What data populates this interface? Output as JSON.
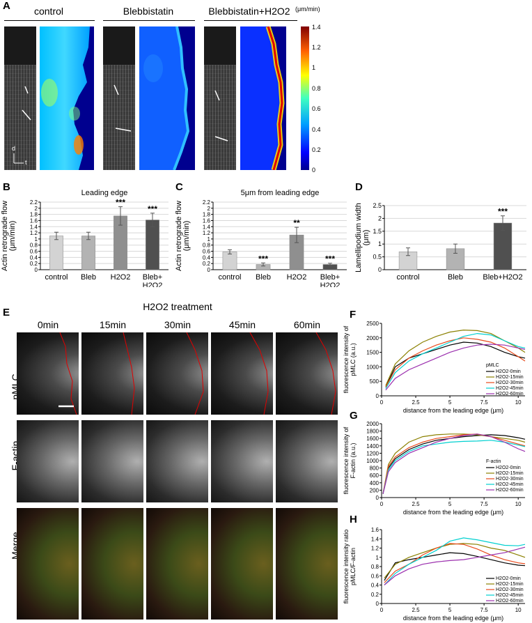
{
  "panelA": {
    "label": "A",
    "conditions": [
      "control",
      "Blebbistatin",
      "Blebbistatin+H2O2"
    ],
    "colorbar": {
      "unit": "(μm/min)",
      "ticks": [
        "1.4",
        "1.2",
        "1",
        "0.8",
        "0.6",
        "0.4",
        "0.2",
        "0"
      ]
    },
    "axis_labels": {
      "d": "d",
      "t": "t"
    }
  },
  "panelB": {
    "label": "B"
  },
  "panelC": {
    "label": "C"
  },
  "panelD": {
    "label": "D"
  },
  "panelE": {
    "label": "E",
    "title": "H2O2 treatment",
    "times": [
      "0min",
      "15min",
      "30min",
      "45min",
      "60min"
    ],
    "rows": [
      "pMLC",
      "F-actin",
      "Merge"
    ]
  },
  "panelF": {
    "label": "F"
  },
  "panelG": {
    "label": "G"
  },
  "panelH": {
    "label": "H"
  },
  "chart_data": [
    {
      "id": "B",
      "type": "bar",
      "title": "Leading edge",
      "ylabel": "Actin retrograde flow (μm/min)",
      "categories": [
        "control",
        "Bleb",
        "H2O2",
        "Bleb+\nH2O2"
      ],
      "values": [
        1.1,
        1.1,
        1.75,
        1.62
      ],
      "errors": [
        0.12,
        0.12,
        0.3,
        0.22
      ],
      "significance": [
        "",
        "",
        "***",
        "***"
      ],
      "colors": [
        "#d3d3d3",
        "#b3b3b3",
        "#8f8f8f",
        "#505050"
      ],
      "ylim": [
        0,
        2.2
      ],
      "yticks": [
        "0",
        "0.2",
        "0.4",
        "0.6",
        "0.8",
        "1",
        "1.2",
        "1.4",
        "1.6",
        "1.8",
        "2",
        "2.2"
      ]
    },
    {
      "id": "C",
      "type": "bar",
      "title": "5μm from leading edge",
      "ylabel": "Actin retrograde flow (μm/min)",
      "categories": [
        "control",
        "Bleb",
        "H2O2",
        "Bleb+\nH2O2"
      ],
      "values": [
        0.58,
        0.17,
        1.13,
        0.17
      ],
      "errors": [
        0.07,
        0.05,
        0.25,
        0.04
      ],
      "significance": [
        "",
        "***",
        "**",
        "***"
      ],
      "colors": [
        "#d3d3d3",
        "#b3b3b3",
        "#8f8f8f",
        "#505050"
      ],
      "ylim": [
        0,
        2.2
      ],
      "yticks": [
        "0",
        "0.2",
        "0.4",
        "0.6",
        "0.8",
        "1",
        "1.2",
        "1.4",
        "1.6",
        "1.8",
        "2",
        "2.2"
      ]
    },
    {
      "id": "D",
      "type": "bar",
      "title": "",
      "ylabel": "Lamellipodium width (μm)",
      "categories": [
        "control",
        "Bleb",
        "Bleb+H2O2"
      ],
      "values": [
        0.7,
        0.82,
        1.82
      ],
      "errors": [
        0.15,
        0.18,
        0.28
      ],
      "significance": [
        "",
        "",
        "***"
      ],
      "colors": [
        "#d3d3d3",
        "#b3b3b3",
        "#505050"
      ],
      "ylim": [
        0,
        2.5
      ],
      "yticks": [
        "0",
        "0.5",
        "1",
        "1.5",
        "2",
        "2.5"
      ]
    },
    {
      "id": "F",
      "type": "line",
      "ylabel": "fluorescence intensity of pMLC (a.u.)",
      "xlabel": "distance from the leading edge (μm)",
      "legend_title": "pMLC",
      "xlim": [
        0,
        10.5
      ],
      "ylim": [
        0,
        2500
      ],
      "xticks": [
        "0",
        "2.5",
        "5",
        "7.5",
        "10"
      ],
      "yticks": [
        "0",
        "500",
        "1000",
        "1500",
        "2000",
        "2500"
      ],
      "x": [
        0.3,
        1,
        2,
        3,
        4,
        5,
        6,
        7,
        8,
        9,
        10,
        10.5
      ],
      "series": [
        {
          "name": "H2O2-0min",
          "color": "#000000",
          "values": [
            300,
            1000,
            1300,
            1450,
            1600,
            1750,
            1850,
            1820,
            1700,
            1500,
            1350,
            1300
          ]
        },
        {
          "name": "H2O2-15min",
          "color": "#8b8000",
          "values": [
            350,
            1100,
            1550,
            1850,
            2050,
            2200,
            2270,
            2250,
            2150,
            1900,
            1650,
            1500
          ]
        },
        {
          "name": "H2O2-30min",
          "color": "#e84a1c",
          "values": [
            300,
            900,
            1300,
            1550,
            1750,
            1900,
            2000,
            1950,
            1850,
            1650,
            1350,
            1200
          ]
        },
        {
          "name": "H2O2-45min",
          "color": "#00d0d0",
          "values": [
            250,
            800,
            1200,
            1450,
            1650,
            1850,
            2050,
            2150,
            2100,
            1900,
            1700,
            1650
          ]
        },
        {
          "name": "H2O2-60min",
          "color": "#9b2fae",
          "values": [
            200,
            600,
            900,
            1100,
            1300,
            1500,
            1650,
            1750,
            1780,
            1750,
            1650,
            1600
          ]
        }
      ]
    },
    {
      "id": "G",
      "type": "line",
      "ylabel": "fluorescence intensity of F-actin (a.u.)",
      "xlabel": "distance from the leading edge (μm)",
      "legend_title": "F-actin",
      "xlim": [
        0,
        10.5
      ],
      "ylim": [
        0,
        2000
      ],
      "xticks": [
        "0",
        "2.5",
        "5",
        "7.5",
        "10"
      ],
      "yticks": [
        "0",
        "200",
        "400",
        "600",
        "800",
        "1000",
        "1200",
        "1400",
        "1600",
        "1800",
        "2000"
      ],
      "x": [
        0.1,
        0.5,
        1,
        2,
        3,
        4,
        5,
        6,
        7,
        8,
        9,
        10,
        10.5
      ],
      "series": [
        {
          "name": "H2O2-0min",
          "color": "#000000",
          "values": [
            100,
            800,
            1050,
            1300,
            1450,
            1550,
            1600,
            1650,
            1680,
            1700,
            1680,
            1620,
            1580
          ]
        },
        {
          "name": "H2O2-15min",
          "color": "#8b8000",
          "values": [
            100,
            900,
            1200,
            1500,
            1650,
            1700,
            1720,
            1720,
            1700,
            1650,
            1600,
            1550,
            1500
          ]
        },
        {
          "name": "H2O2-30min",
          "color": "#e84a1c",
          "values": [
            100,
            850,
            1100,
            1350,
            1500,
            1600,
            1650,
            1700,
            1720,
            1650,
            1550,
            1450,
            1400
          ]
        },
        {
          "name": "H2O2-45min",
          "color": "#00d0d0",
          "values": [
            100,
            750,
            1000,
            1250,
            1400,
            1450,
            1500,
            1520,
            1530,
            1550,
            1500,
            1420,
            1380
          ]
        },
        {
          "name": "H2O2-60min",
          "color": "#9b2fae",
          "values": [
            100,
            700,
            950,
            1200,
            1350,
            1500,
            1600,
            1680,
            1720,
            1650,
            1500,
            1320,
            1250
          ]
        }
      ]
    },
    {
      "id": "H",
      "type": "line",
      "ylabel": "fluorescence intensity ratio pMLC/F-actin",
      "xlabel": "distance from the leading edge (μm)",
      "xlim": [
        0,
        10.5
      ],
      "ylim": [
        0,
        1.6
      ],
      "xticks": [
        "0",
        "2.5",
        "5",
        "7.5",
        "10"
      ],
      "yticks": [
        "0",
        "0.2",
        "0.4",
        "0.6",
        "0.8",
        "1",
        "1.2",
        "1.4",
        "1.6"
      ],
      "x": [
        0.2,
        1,
        2,
        3,
        4,
        5,
        6,
        7,
        8,
        9,
        10,
        10.5
      ],
      "series": [
        {
          "name": "H2O2-0min",
          "color": "#000000",
          "values": [
            0.5,
            0.88,
            0.95,
            1.0,
            1.05,
            1.1,
            1.08,
            1.02,
            0.95,
            0.88,
            0.83,
            0.82
          ]
        },
        {
          "name": "H2O2-15min",
          "color": "#8b8000",
          "values": [
            0.55,
            0.85,
            1.0,
            1.1,
            1.2,
            1.28,
            1.3,
            1.28,
            1.2,
            1.15,
            1.05,
            1.0
          ]
        },
        {
          "name": "H2O2-30min",
          "color": "#e84a1c",
          "values": [
            0.45,
            0.7,
            0.85,
            1.05,
            1.2,
            1.3,
            1.28,
            1.18,
            1.05,
            0.95,
            0.88,
            0.86
          ]
        },
        {
          "name": "H2O2-45min",
          "color": "#00d0d0",
          "values": [
            0.4,
            0.65,
            0.85,
            1.0,
            1.15,
            1.35,
            1.42,
            1.38,
            1.32,
            1.26,
            1.25,
            1.28
          ]
        },
        {
          "name": "H2O2-60min",
          "color": "#9b2fae",
          "values": [
            0.4,
            0.6,
            0.75,
            0.85,
            0.9,
            0.93,
            0.95,
            1.0,
            1.05,
            1.1,
            1.18,
            1.22
          ]
        }
      ]
    }
  ]
}
